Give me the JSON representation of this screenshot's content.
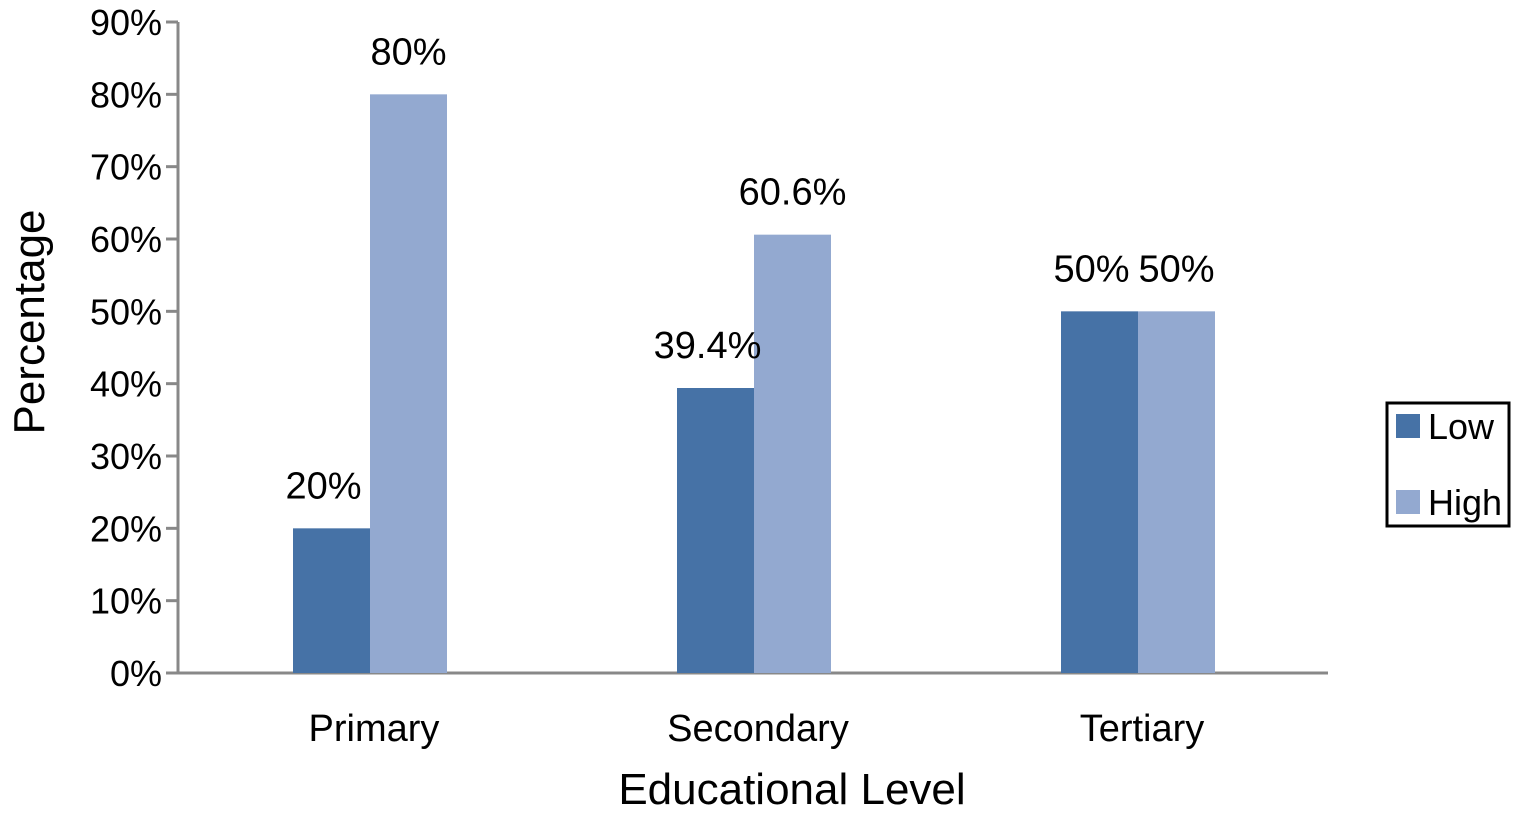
{
  "chart_data": {
    "type": "bar",
    "xlabel": "Educational Level",
    "ylabel": "Percentage",
    "categories": [
      "Primary",
      "Secondary",
      "Tertiary"
    ],
    "series": [
      {
        "name": "Low",
        "values": [
          20,
          39.4,
          50
        ],
        "labels": [
          "20%",
          "39.4%",
          "50%"
        ],
        "color": "#4672a6"
      },
      {
        "name": "High",
        "values": [
          80,
          60.6,
          50
        ],
        "labels": [
          "80%",
          "60.6%",
          "50%"
        ],
        "color": "#93a9d0"
      }
    ],
    "ylim": [
      0,
      90
    ],
    "yticks": [
      "0%",
      "10%",
      "20%",
      "30%",
      "40%",
      "50%",
      "60%",
      "70%",
      "80%",
      "90%"
    ],
    "grid": false,
    "legend_position": "right"
  }
}
